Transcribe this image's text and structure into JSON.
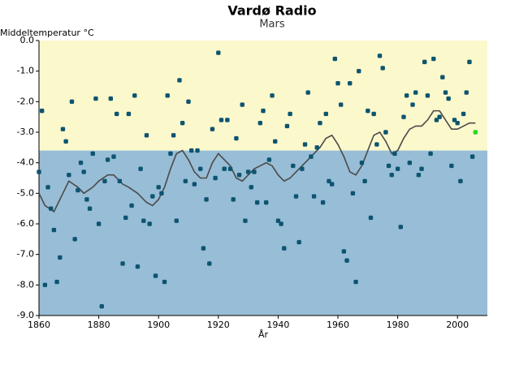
{
  "chart_data": {
    "type": "scatter",
    "title": "Vardø Radio",
    "subtitle": "Mars",
    "y_label": "Middeltemperatur °C",
    "x_label": "År",
    "xlim": [
      1860,
      2010
    ],
    "xticks": [
      1860,
      1880,
      1900,
      1920,
      1940,
      1960,
      1980,
      2000
    ],
    "ylim": [
      -9,
      0
    ],
    "yticks": [
      {
        "value": 0,
        "label": "0.0"
      },
      {
        "value": -1,
        "label": "-1.0"
      },
      {
        "value": -2,
        "label": "-2.0"
      },
      {
        "value": -3,
        "label": "-3.0"
      },
      {
        "value": -4,
        "label": "-4.0"
      },
      {
        "value": -5,
        "label": "-5.0"
      },
      {
        "value": -6,
        "label": "-6.0"
      },
      {
        "value": -7,
        "label": "-7.0"
      },
      {
        "value": -8,
        "label": "-8.0"
      },
      {
        "value": -9,
        "label": "-9.0"
      }
    ],
    "reference_value": -3.6,
    "above_color": "#fbf8cc",
    "below_color": "#98bdd6",
    "points": {
      "color": "#0d5470",
      "last_point_color": "#22dd22",
      "x": [
        1860,
        1861,
        1862,
        1863,
        1864,
        1865,
        1866,
        1867,
        1868,
        1869,
        1870,
        1871,
        1872,
        1873,
        1874,
        1875,
        1876,
        1877,
        1878,
        1879,
        1880,
        1881,
        1882,
        1883,
        1884,
        1885,
        1886,
        1887,
        1888,
        1889,
        1890,
        1891,
        1892,
        1893,
        1894,
        1895,
        1896,
        1897,
        1898,
        1899,
        1900,
        1901,
        1902,
        1903,
        1904,
        1905,
        1906,
        1907,
        1908,
        1909,
        1910,
        1911,
        1912,
        1913,
        1914,
        1915,
        1916,
        1917,
        1918,
        1919,
        1920,
        1921,
        1922,
        1923,
        1924,
        1925,
        1926,
        1927,
        1928,
        1929,
        1930,
        1931,
        1932,
        1933,
        1934,
        1935,
        1936,
        1937,
        1938,
        1939,
        1940,
        1941,
        1942,
        1943,
        1944,
        1945,
        1946,
        1947,
        1948,
        1949,
        1950,
        1951,
        1952,
        1953,
        1954,
        1955,
        1956,
        1957,
        1958,
        1959,
        1960,
        1961,
        1962,
        1963,
        1964,
        1965,
        1966,
        1967,
        1968,
        1969,
        1970,
        1971,
        1972,
        1973,
        1974,
        1975,
        1976,
        1977,
        1978,
        1979,
        1980,
        1981,
        1982,
        1983,
        1984,
        1985,
        1986,
        1987,
        1988,
        1989,
        1990,
        1991,
        1992,
        1993,
        1994,
        1995,
        1996,
        1997,
        1998,
        1999,
        2000,
        2001,
        2002,
        2003,
        2004,
        2005,
        2006
      ],
      "values": [
        -4.3,
        -2.3,
        -8.0,
        -4.8,
        -5.5,
        -6.2,
        -7.9,
        -7.1,
        -2.9,
        -3.3,
        -4.4,
        -2.0,
        -6.5,
        -4.9,
        -4.0,
        -4.3,
        -5.2,
        -5.5,
        -3.7,
        -1.9,
        -6.0,
        -8.7,
        -4.6,
        -3.9,
        -1.9,
        -3.8,
        -2.4,
        -4.6,
        -7.3,
        -5.8,
        -2.4,
        -5.4,
        -1.8,
        -7.4,
        -4.2,
        -5.9,
        -3.1,
        -6.0,
        -5.1,
        -7.7,
        -4.8,
        -5.0,
        -7.9,
        -1.8,
        -3.7,
        -3.1,
        -5.9,
        -1.3,
        -2.7,
        -4.6,
        -2.0,
        -3.6,
        -4.7,
        -3.6,
        -4.2,
        -6.8,
        -5.2,
        -7.3,
        -2.9,
        -4.5,
        -0.4,
        -2.6,
        -4.2,
        -2.6,
        -4.2,
        -5.2,
        -3.2,
        -4.4,
        -2.1,
        -5.9,
        -4.3,
        -4.8,
        -4.3,
        -5.3,
        -2.7,
        -2.3,
        -5.3,
        -3.9,
        -1.8,
        -3.3,
        -5.9,
        -6.0,
        -6.8,
        -2.8,
        -2.4,
        -4.1,
        -5.1,
        -6.6,
        -4.2,
        -3.4,
        -1.7,
        -3.8,
        -5.1,
        -3.5,
        -2.7,
        -5.3,
        -2.4,
        -4.6,
        -4.7,
        -0.6,
        -1.4,
        -2.1,
        -6.9,
        -7.2,
        -1.4,
        -5.0,
        -7.9,
        -1.0,
        -4.0,
        -4.6,
        -2.3,
        -5.8,
        -2.4,
        -3.4,
        -0.5,
        -0.9,
        -3.0,
        -4.1,
        -4.4,
        -3.7,
        -4.2,
        -6.1,
        -2.5,
        -1.8,
        -4.0,
        -2.1,
        -1.7,
        -4.4,
        -4.2,
        -0.7,
        -1.8,
        -3.7,
        -0.6,
        -2.6,
        -2.5,
        -1.2,
        -1.7,
        -1.9,
        -4.1,
        -2.6,
        -2.7,
        -4.6,
        -2.4,
        -1.7,
        -0.7,
        -3.8,
        -3.0
      ]
    },
    "smooth": {
      "color": "#4a4a4a",
      "x": [
        1860,
        1862,
        1865,
        1868,
        1870,
        1873,
        1875,
        1878,
        1880,
        1883,
        1885,
        1888,
        1890,
        1893,
        1896,
        1898,
        1900,
        1902,
        1904,
        1906,
        1908,
        1910,
        1912,
        1914,
        1916,
        1918,
        1920,
        1922,
        1924,
        1926,
        1928,
        1930,
        1932,
        1934,
        1936,
        1938,
        1940,
        1942,
        1944,
        1946,
        1948,
        1950,
        1952,
        1954,
        1956,
        1958,
        1960,
        1962,
        1964,
        1966,
        1968,
        1970,
        1972,
        1974,
        1976,
        1978,
        1980,
        1982,
        1984,
        1986,
        1988,
        1990,
        1992,
        1994,
        1996,
        1998,
        2000,
        2002,
        2004,
        2006
      ],
      "values": [
        -5.0,
        -5.4,
        -5.6,
        -5.0,
        -4.6,
        -4.8,
        -5.0,
        -4.8,
        -4.6,
        -4.4,
        -4.4,
        -4.7,
        -4.8,
        -5.0,
        -5.3,
        -5.4,
        -5.2,
        -4.8,
        -4.2,
        -3.7,
        -3.6,
        -3.9,
        -4.3,
        -4.5,
        -4.5,
        -4.0,
        -3.7,
        -3.9,
        -4.1,
        -4.5,
        -4.6,
        -4.4,
        -4.2,
        -4.1,
        -4.0,
        -4.1,
        -4.4,
        -4.6,
        -4.5,
        -4.3,
        -4.1,
        -3.9,
        -3.7,
        -3.5,
        -3.2,
        -3.1,
        -3.4,
        -3.8,
        -4.3,
        -4.4,
        -4.1,
        -3.6,
        -3.1,
        -3.0,
        -3.3,
        -3.7,
        -3.6,
        -3.2,
        -2.9,
        -2.8,
        -2.8,
        -2.6,
        -2.3,
        -2.3,
        -2.6,
        -2.9,
        -2.9,
        -2.8,
        -2.7,
        -2.7
      ]
    }
  }
}
